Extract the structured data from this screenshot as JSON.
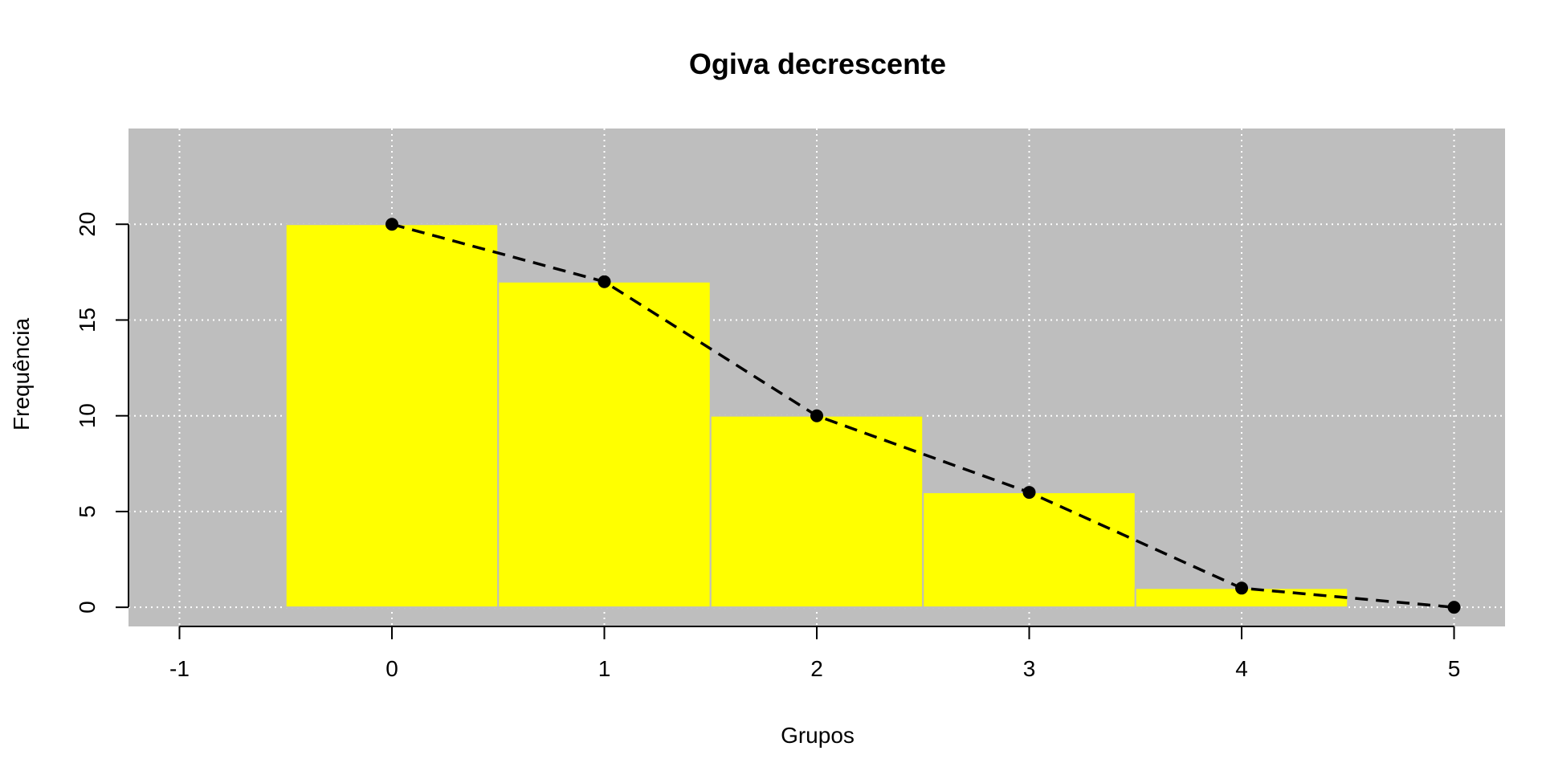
{
  "chart_data": {
    "type": "bar",
    "title": "Ogiva decrescente",
    "xlabel": "Grupos",
    "ylabel": "Frequência",
    "x_ticks": [
      "-1",
      "0",
      "1",
      "2",
      "3",
      "4",
      "5"
    ],
    "y_ticks": [
      "0",
      "5",
      "10",
      "15",
      "20"
    ],
    "xlim": [
      -1.24,
      5.24
    ],
    "ylim": [
      -1,
      25
    ],
    "grid": true,
    "bars": {
      "categories": [
        0,
        1,
        2,
        3,
        4
      ],
      "values": [
        20,
        17,
        10,
        6,
        1
      ]
    },
    "line": {
      "x": [
        0,
        1,
        2,
        3,
        4,
        5
      ],
      "y": [
        20,
        17,
        10,
        6,
        1,
        0
      ]
    },
    "colors": {
      "panel_background": "#bebebe",
      "bar_fill": "#ffff00",
      "bar_border": "#bebebe",
      "line": "#000000",
      "grid": "#ffffff"
    }
  }
}
